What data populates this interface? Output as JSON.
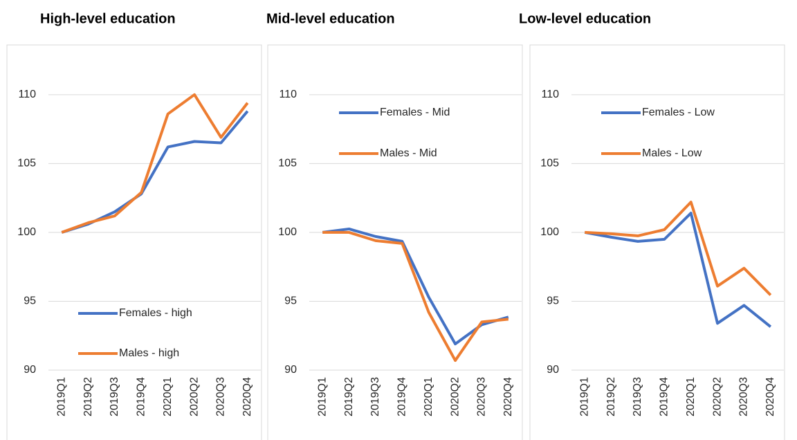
{
  "chart_data": [
    {
      "type": "line",
      "title": "High-level education",
      "categories": [
        "2019Q1",
        "2019Q2",
        "2019Q3",
        "2019Q4",
        "2020Q1",
        "2020Q2",
        "2020Q3",
        "2020Q4"
      ],
      "series": [
        {
          "name": "Females - high",
          "color": "#4472c4",
          "values": [
            100,
            100.6,
            101.5,
            102.8,
            106.2,
            106.6,
            106.5,
            108.8
          ]
        },
        {
          "name": "Males - high",
          "color": "#ed7d31",
          "values": [
            100,
            100.7,
            101.2,
            102.9,
            108.6,
            110,
            106.9,
            109.4
          ]
        }
      ],
      "ylim": [
        90,
        112
      ],
      "yticks": [
        90,
        95,
        100,
        105,
        110
      ],
      "grid": true,
      "legend": "lower"
    },
    {
      "type": "line",
      "title": "Mid-level education",
      "categories": [
        "2019Q1",
        "2019Q2",
        "2019Q3",
        "2019Q4",
        "2020Q1",
        "2020Q2",
        "2020Q3",
        "2020Q4"
      ],
      "series": [
        {
          "name": "Females - Mid",
          "color": "#4472c4",
          "values": [
            100,
            100.25,
            99.7,
            99.35,
            95.3,
            91.9,
            93.3,
            93.85
          ]
        },
        {
          "name": "Males - Mid",
          "color": "#ed7d31",
          "values": [
            100,
            100,
            99.4,
            99.2,
            94.2,
            90.7,
            93.5,
            93.7
          ]
        }
      ],
      "ylim": [
        90,
        112
      ],
      "yticks": [
        90,
        95,
        100,
        105,
        110
      ],
      "grid": true,
      "legend": "upper"
    },
    {
      "type": "line",
      "title": "Low-level education",
      "categories": [
        "2019Q1",
        "2019Q2",
        "2019Q3",
        "2019Q4",
        "2020Q1",
        "2020Q2",
        "2020Q3",
        "2020Q4"
      ],
      "series": [
        {
          "name": "Females - Low",
          "color": "#4472c4",
          "values": [
            100,
            99.65,
            99.35,
            99.5,
            101.4,
            93.4,
            94.7,
            93.15
          ]
        },
        {
          "name": "Males - Low",
          "color": "#ed7d31",
          "values": [
            100,
            99.9,
            99.75,
            100.2,
            102.2,
            96.1,
            97.4,
            95.45
          ]
        }
      ],
      "ylim": [
        90,
        112
      ],
      "yticks": [
        90,
        95,
        100,
        105,
        110
      ],
      "grid": true,
      "legend": "upper"
    }
  ]
}
